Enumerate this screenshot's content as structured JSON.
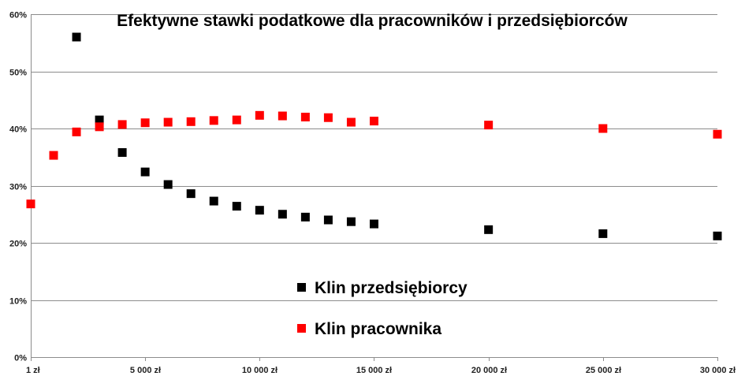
{
  "chart_data": {
    "type": "scatter",
    "title": "Efektywne stawki podatkowe dla pracowników i przedsiębiorców",
    "xlabel": "",
    "ylabel": "",
    "x_ticks": [
      {
        "value": 1,
        "label": "1 zł"
      },
      {
        "value": 5000,
        "label": "5 000 zł"
      },
      {
        "value": 10000,
        "label": "10 000 zł"
      },
      {
        "value": 15000,
        "label": "15 000 zł"
      },
      {
        "value": 20000,
        "label": "20 000 zł"
      },
      {
        "value": 25000,
        "label": "25 000 zł"
      },
      {
        "value": 30000,
        "label": "30 000 zł"
      }
    ],
    "y_ticks": [
      {
        "value": 0,
        "label": "0%"
      },
      {
        "value": 10,
        "label": "10%"
      },
      {
        "value": 20,
        "label": "20%"
      },
      {
        "value": 30,
        "label": "30%"
      },
      {
        "value": 40,
        "label": "40%"
      },
      {
        "value": 50,
        "label": "50%"
      },
      {
        "value": 60,
        "label": "60%"
      }
    ],
    "xlim": [
      1,
      30000
    ],
    "ylim": [
      0,
      60
    ],
    "grid": "horizontal",
    "legend_position": "center",
    "series": [
      {
        "name": "Klin przedsiębiorcy",
        "color": "#000000",
        "marker": "square",
        "points": [
          {
            "x": 2000,
            "y": 56.0
          },
          {
            "x": 3000,
            "y": 41.5
          },
          {
            "x": 4000,
            "y": 35.8
          },
          {
            "x": 5000,
            "y": 32.4
          },
          {
            "x": 6000,
            "y": 30.2
          },
          {
            "x": 7000,
            "y": 28.6
          },
          {
            "x": 8000,
            "y": 27.3
          },
          {
            "x": 9000,
            "y": 26.4
          },
          {
            "x": 10000,
            "y": 25.7
          },
          {
            "x": 11000,
            "y": 25.0
          },
          {
            "x": 12000,
            "y": 24.5
          },
          {
            "x": 13000,
            "y": 24.0
          },
          {
            "x": 14000,
            "y": 23.7
          },
          {
            "x": 15000,
            "y": 23.3
          },
          {
            "x": 20000,
            "y": 22.3
          },
          {
            "x": 25000,
            "y": 21.6
          },
          {
            "x": 30000,
            "y": 21.2
          }
        ]
      },
      {
        "name": "Klin pracownika",
        "color": "#ff0000",
        "marker": "square",
        "points": [
          {
            "x": 1,
            "y": 26.8
          },
          {
            "x": 1000,
            "y": 35.3
          },
          {
            "x": 2000,
            "y": 39.4
          },
          {
            "x": 3000,
            "y": 40.3
          },
          {
            "x": 4000,
            "y": 40.7
          },
          {
            "x": 5000,
            "y": 41.0
          },
          {
            "x": 6000,
            "y": 41.1
          },
          {
            "x": 7000,
            "y": 41.2
          },
          {
            "x": 8000,
            "y": 41.4
          },
          {
            "x": 9000,
            "y": 41.5
          },
          {
            "x": 10000,
            "y": 42.3
          },
          {
            "x": 11000,
            "y": 42.2
          },
          {
            "x": 12000,
            "y": 42.0
          },
          {
            "x": 13000,
            "y": 41.9
          },
          {
            "x": 14000,
            "y": 41.1
          },
          {
            "x": 15000,
            "y": 41.3
          },
          {
            "x": 20000,
            "y": 40.6
          },
          {
            "x": 25000,
            "y": 40.0
          },
          {
            "x": 30000,
            "y": 39.0
          }
        ]
      }
    ]
  }
}
